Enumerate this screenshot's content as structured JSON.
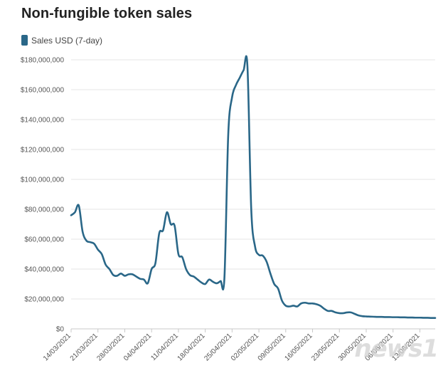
{
  "chart_data": {
    "type": "line",
    "title": "Non-fungible token sales",
    "xlabel": "",
    "ylabel": "",
    "ylim": [
      0,
      180000000
    ],
    "yticks": [
      0,
      20000000,
      40000000,
      60000000,
      80000000,
      100000000,
      120000000,
      140000000,
      160000000,
      180000000
    ],
    "ytick_labels": [
      "$0",
      "$20,000,000",
      "$40,000,000",
      "$60,000,000",
      "$80,000,000",
      "$100,000,000",
      "$120,000,000",
      "$140,000,000",
      "$160,000,000",
      "$180,000,000"
    ],
    "xtick_labels": [
      "14/03/2021",
      "21/03/2021",
      "28/03/2021",
      "04/04/2021",
      "11/04/2021",
      "18/04/2021",
      "25/04/2021",
      "02/05/2021",
      "09/05/2021",
      "16/05/2021",
      "23/05/2021",
      "30/05/2021",
      "06/06/2021",
      "13/06/2021"
    ],
    "x_range": [
      "2021-03-14",
      "2021-06-17"
    ],
    "grid": true,
    "legend_position": "top-left",
    "series": [
      {
        "name": "Sales USD (7-day)",
        "color": "#2a6788",
        "x": [
          "2021-03-14",
          "2021-03-15",
          "2021-03-16",
          "2021-03-17",
          "2021-03-18",
          "2021-03-19",
          "2021-03-20",
          "2021-03-21",
          "2021-03-22",
          "2021-03-23",
          "2021-03-24",
          "2021-03-25",
          "2021-03-26",
          "2021-03-27",
          "2021-03-28",
          "2021-03-29",
          "2021-03-30",
          "2021-03-31",
          "2021-04-01",
          "2021-04-02",
          "2021-04-03",
          "2021-04-04",
          "2021-04-05",
          "2021-04-06",
          "2021-04-07",
          "2021-04-08",
          "2021-04-09",
          "2021-04-10",
          "2021-04-11",
          "2021-04-12",
          "2021-04-13",
          "2021-04-14",
          "2021-04-15",
          "2021-04-16",
          "2021-04-17",
          "2021-04-18",
          "2021-04-19",
          "2021-04-20",
          "2021-04-21",
          "2021-04-22",
          "2021-04-23",
          "2021-04-24",
          "2021-04-25",
          "2021-04-26",
          "2021-04-27",
          "2021-04-28",
          "2021-04-29",
          "2021-04-30",
          "2021-05-01",
          "2021-05-02",
          "2021-05-03",
          "2021-05-04",
          "2021-05-05",
          "2021-05-06",
          "2021-05-07",
          "2021-05-08",
          "2021-05-09",
          "2021-05-10",
          "2021-05-11",
          "2021-05-12",
          "2021-05-13",
          "2021-05-14",
          "2021-05-15",
          "2021-05-16",
          "2021-05-17",
          "2021-05-18",
          "2021-05-19",
          "2021-05-20",
          "2021-05-21",
          "2021-05-22",
          "2021-05-23",
          "2021-05-24",
          "2021-05-25",
          "2021-05-26",
          "2021-05-27",
          "2021-05-28",
          "2021-05-29",
          "2021-05-30",
          "2021-05-31",
          "2021-06-01",
          "2021-06-02",
          "2021-06-03",
          "2021-06-04",
          "2021-06-05",
          "2021-06-06",
          "2021-06-07",
          "2021-06-08",
          "2021-06-09",
          "2021-06-10",
          "2021-06-11",
          "2021-06-12",
          "2021-06-13",
          "2021-06-14",
          "2021-06-15",
          "2021-06-16",
          "2021-06-17"
        ],
        "values": [
          76000000,
          78000000,
          82500000,
          65000000,
          59000000,
          58000000,
          57000000,
          53000000,
          50000000,
          43000000,
          40000000,
          36000000,
          35500000,
          37000000,
          35500000,
          36500000,
          36500000,
          35000000,
          33500000,
          33000000,
          30500000,
          40000000,
          44000000,
          64000000,
          66000000,
          78000000,
          70000000,
          69000000,
          50000000,
          48000000,
          40000000,
          36000000,
          35000000,
          33000000,
          31000000,
          30000000,
          33000000,
          31500000,
          30500000,
          32000000,
          34000000,
          130000000,
          155000000,
          163000000,
          168000000,
          173000000,
          176000000,
          80000000,
          55000000,
          49500000,
          49000000,
          45000000,
          37000000,
          30000000,
          27000000,
          19000000,
          15500000,
          15000000,
          15500000,
          15000000,
          17000000,
          17500000,
          17000000,
          17000000,
          16500000,
          15500000,
          13500000,
          12000000,
          12000000,
          11000000,
          10500000,
          10500000,
          11000000,
          11000000,
          10000000,
          9000000,
          8500000,
          8300000,
          8200000,
          8100000,
          8000000,
          8000000,
          7900000,
          7900000,
          7800000,
          7800000,
          7700000,
          7700000,
          7600000,
          7600000,
          7500000,
          7500000,
          7400000,
          7400000,
          7300000,
          7300000
        ]
      }
    ]
  },
  "watermark": "news1"
}
